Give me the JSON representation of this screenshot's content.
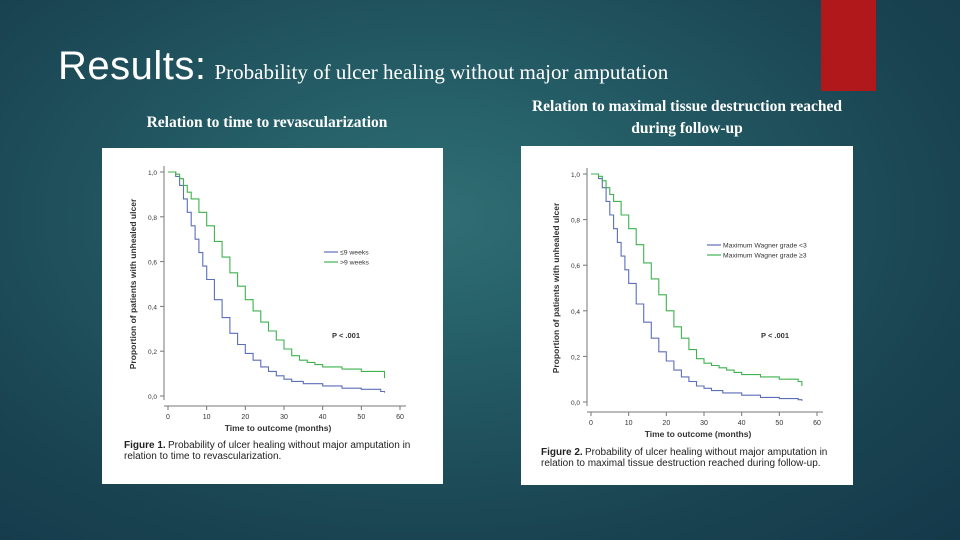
{
  "slide": {
    "title_main": "Results:",
    "title_sub": "Probability of ulcer healing without major amputation"
  },
  "left_caption": "Relation to time to revascularization",
  "right_caption": "Relation to maximal tissue destruction reached during follow-up",
  "colors": {
    "accent": "#b0181b",
    "series_blue": "#5b6fb8",
    "series_green": "#3fb24f"
  },
  "chart_data": [
    {
      "type": "line",
      "step": true,
      "xlabel": "Time to outcome (months)",
      "ylabel": "Proportion of patients with unhealed ulcer",
      "xlim": [
        0,
        60
      ],
      "ylim": [
        0,
        1
      ],
      "x_ticks": [
        "0",
        "10",
        "20",
        "30",
        "40",
        "50",
        "60"
      ],
      "y_ticks": [
        "0,0",
        "0,2",
        "0,4",
        "0,6",
        "0,8",
        "1,0"
      ],
      "legend_position": "right",
      "annotation": "P < .001",
      "figure_caption_bold": "Figure 1.",
      "figure_caption_line1": "Probability of ulcer healing without major amputation in",
      "figure_caption_line2": "relation to time to revascularization.",
      "series": [
        {
          "name": "≤9 weeks",
          "color": "#5b6fb8",
          "points": [
            [
              0,
              1.0
            ],
            [
              1,
              1.0
            ],
            [
              2,
              0.98
            ],
            [
              3,
              0.94
            ],
            [
              4,
              0.88
            ],
            [
              5,
              0.82
            ],
            [
              6,
              0.76
            ],
            [
              7,
              0.7
            ],
            [
              8,
              0.64
            ],
            [
              9,
              0.58
            ],
            [
              10,
              0.52
            ],
            [
              12,
              0.43
            ],
            [
              14,
              0.35
            ],
            [
              16,
              0.28
            ],
            [
              18,
              0.23
            ],
            [
              20,
              0.19
            ],
            [
              22,
              0.16
            ],
            [
              24,
              0.13
            ],
            [
              26,
              0.11
            ],
            [
              28,
              0.09
            ],
            [
              30,
              0.075
            ],
            [
              32,
              0.065
            ],
            [
              35,
              0.055
            ],
            [
              40,
              0.045
            ],
            [
              45,
              0.035
            ],
            [
              50,
              0.03
            ],
            [
              55,
              0.02
            ],
            [
              56,
              0.015
            ]
          ]
        },
        {
          "name": ">9 weeks",
          "color": "#3fb24f",
          "points": [
            [
              0,
              1.0
            ],
            [
              1,
              1.0
            ],
            [
              2,
              0.99
            ],
            [
              3,
              0.97
            ],
            [
              4,
              0.94
            ],
            [
              5,
              0.91
            ],
            [
              6,
              0.88
            ],
            [
              8,
              0.82
            ],
            [
              10,
              0.76
            ],
            [
              12,
              0.69
            ],
            [
              14,
              0.62
            ],
            [
              16,
              0.55
            ],
            [
              18,
              0.49
            ],
            [
              20,
              0.43
            ],
            [
              22,
              0.38
            ],
            [
              24,
              0.33
            ],
            [
              26,
              0.29
            ],
            [
              28,
              0.25
            ],
            [
              30,
              0.21
            ],
            [
              32,
              0.18
            ],
            [
              34,
              0.16
            ],
            [
              36,
              0.15
            ],
            [
              38,
              0.14
            ],
            [
              40,
              0.13
            ],
            [
              45,
              0.12
            ],
            [
              50,
              0.11
            ],
            [
              55,
              0.11
            ],
            [
              56,
              0.08
            ]
          ]
        }
      ]
    },
    {
      "type": "line",
      "step": true,
      "xlabel": "Time to outcome (months)",
      "ylabel": "Proportion of patients with unhealed ulcer",
      "xlim": [
        0,
        60
      ],
      "ylim": [
        0,
        1
      ],
      "x_ticks": [
        "0",
        "10",
        "20",
        "30",
        "40",
        "50",
        "60"
      ],
      "y_ticks": [
        "0,0",
        "0,2",
        "0,4",
        "0,6",
        "0,8",
        "1,0"
      ],
      "legend_position": "right",
      "annotation": "P < .001",
      "figure_caption_bold": "Figure 2.",
      "figure_caption_line1": "Probability of ulcer healing without major amputation in",
      "figure_caption_line2": "relation to maximal tissue destruction reached during follow-up.",
      "series": [
        {
          "name": "Maximum Wagner grade <3",
          "color": "#5b6fb8",
          "points": [
            [
              0,
              1.0
            ],
            [
              1,
              1.0
            ],
            [
              2,
              0.98
            ],
            [
              3,
              0.94
            ],
            [
              4,
              0.88
            ],
            [
              5,
              0.82
            ],
            [
              6,
              0.76
            ],
            [
              7,
              0.7
            ],
            [
              8,
              0.64
            ],
            [
              9,
              0.58
            ],
            [
              10,
              0.52
            ],
            [
              12,
              0.43
            ],
            [
              14,
              0.35
            ],
            [
              16,
              0.28
            ],
            [
              18,
              0.22
            ],
            [
              20,
              0.18
            ],
            [
              22,
              0.14
            ],
            [
              24,
              0.11
            ],
            [
              26,
              0.09
            ],
            [
              28,
              0.07
            ],
            [
              30,
              0.06
            ],
            [
              32,
              0.05
            ],
            [
              35,
              0.04
            ],
            [
              40,
              0.03
            ],
            [
              45,
              0.02
            ],
            [
              50,
              0.015
            ],
            [
              55,
              0.01
            ],
            [
              56,
              0.005
            ]
          ]
        },
        {
          "name": "Maximum Wagner grade ≥3",
          "color": "#3fb24f",
          "points": [
            [
              0,
              1.0
            ],
            [
              1,
              1.0
            ],
            [
              2,
              0.99
            ],
            [
              3,
              0.97
            ],
            [
              4,
              0.94
            ],
            [
              5,
              0.91
            ],
            [
              6,
              0.88
            ],
            [
              8,
              0.82
            ],
            [
              10,
              0.76
            ],
            [
              12,
              0.69
            ],
            [
              14,
              0.61
            ],
            [
              16,
              0.54
            ],
            [
              18,
              0.47
            ],
            [
              20,
              0.4
            ],
            [
              22,
              0.33
            ],
            [
              24,
              0.28
            ],
            [
              26,
              0.23
            ],
            [
              28,
              0.19
            ],
            [
              30,
              0.17
            ],
            [
              32,
              0.16
            ],
            [
              34,
              0.15
            ],
            [
              36,
              0.14
            ],
            [
              38,
              0.13
            ],
            [
              40,
              0.12
            ],
            [
              45,
              0.11
            ],
            [
              50,
              0.1
            ],
            [
              55,
              0.09
            ],
            [
              56,
              0.07
            ]
          ]
        }
      ]
    }
  ]
}
